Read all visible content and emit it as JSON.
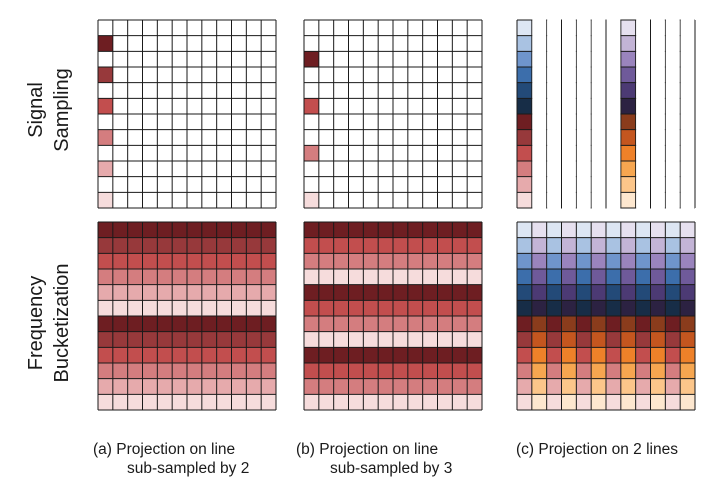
{
  "rows": [
    {
      "label_line1": "Signal",
      "label_line2": "Sampling"
    },
    {
      "label_line1": "Frequency",
      "label_line2": "Bucketization"
    }
  ],
  "panels": [
    {
      "tag": "(a)",
      "caption_line1": "Projection on line",
      "caption_line2": "sub-sampled by 2",
      "grid": {
        "rows": 12,
        "cols": 12
      },
      "sampling": {
        "column": 0,
        "sampled_rows": [
          2,
          4,
          6,
          8,
          10,
          12
        ],
        "palette": "red"
      },
      "bucketization": {
        "style": "horizontal bands",
        "period": 6,
        "palette": "red"
      }
    },
    {
      "tag": "(b)",
      "caption_line1": "Projection on line",
      "caption_line2": "sub-sampled by 3",
      "grid": {
        "rows": 12,
        "cols": 12
      },
      "sampling": {
        "column": 0,
        "sampled_rows": [
          3,
          6,
          9,
          12
        ],
        "palette": "red"
      },
      "bucketization": {
        "style": "horizontal bands",
        "period": 4,
        "palette": "red"
      }
    },
    {
      "tag": "(c)",
      "caption_line1": "Projection on 2 lines",
      "caption_line2": "",
      "grid": {
        "rows": 12,
        "cols": 12
      },
      "sampling": {
        "columns": [
          0,
          7
        ],
        "palette_left": "blue-red",
        "palette_right": "purple-orange"
      },
      "bucketization": {
        "style": "two-line checkerboard",
        "palette": "blue-red / purple-orange"
      }
    }
  ],
  "colors": {
    "grid_line": "#1a1a1a",
    "red_scale": [
      "#6e1e22",
      "#97393b",
      "#c24e4e",
      "#d47d7f",
      "#e6aaac",
      "#f6dcdc"
    ],
    "blue_scale": [
      "#dde6f3",
      "#a9c2e2",
      "#6f95cc",
      "#3c6eab",
      "#234a78",
      "#172d47"
    ],
    "purple_scale": [
      "#e6e0ef",
      "#c3b4d6",
      "#9a84bd",
      "#6f5a9a",
      "#4c3a74",
      "#2c2242"
    ],
    "orange_scale": [
      "#8a3c1c",
      "#c4561f",
      "#ee8129",
      "#f6a650",
      "#fcc68a",
      "#fde7cf"
    ]
  }
}
